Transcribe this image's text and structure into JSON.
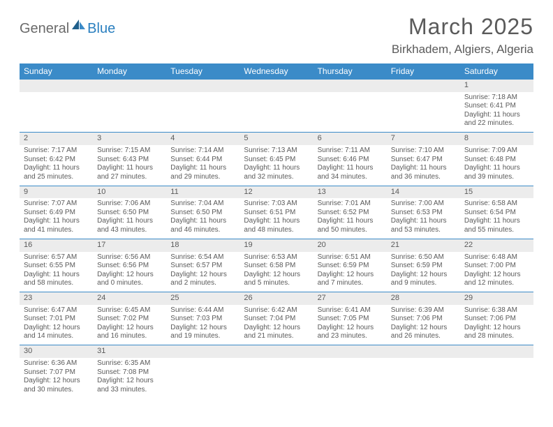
{
  "logo": {
    "part1": "General",
    "part2": "Blue"
  },
  "title": "March 2025",
  "location": "Birkhadem, Algiers, Algeria",
  "colors": {
    "header_bg": "#3b8bc8",
    "header_text": "#ffffff",
    "daynum_bg": "#ececec",
    "border": "#3b8bc8",
    "text": "#5a5a5a",
    "logo_accent": "#2a7fbf"
  },
  "weekdays": [
    "Sunday",
    "Monday",
    "Tuesday",
    "Wednesday",
    "Thursday",
    "Friday",
    "Saturday"
  ],
  "weeks": [
    [
      null,
      null,
      null,
      null,
      null,
      null,
      {
        "n": "1",
        "sr": "Sunrise: 7:18 AM",
        "ss": "Sunset: 6:41 PM",
        "d1": "Daylight: 11 hours",
        "d2": "and 22 minutes."
      }
    ],
    [
      {
        "n": "2",
        "sr": "Sunrise: 7:17 AM",
        "ss": "Sunset: 6:42 PM",
        "d1": "Daylight: 11 hours",
        "d2": "and 25 minutes."
      },
      {
        "n": "3",
        "sr": "Sunrise: 7:15 AM",
        "ss": "Sunset: 6:43 PM",
        "d1": "Daylight: 11 hours",
        "d2": "and 27 minutes."
      },
      {
        "n": "4",
        "sr": "Sunrise: 7:14 AM",
        "ss": "Sunset: 6:44 PM",
        "d1": "Daylight: 11 hours",
        "d2": "and 29 minutes."
      },
      {
        "n": "5",
        "sr": "Sunrise: 7:13 AM",
        "ss": "Sunset: 6:45 PM",
        "d1": "Daylight: 11 hours",
        "d2": "and 32 minutes."
      },
      {
        "n": "6",
        "sr": "Sunrise: 7:11 AM",
        "ss": "Sunset: 6:46 PM",
        "d1": "Daylight: 11 hours",
        "d2": "and 34 minutes."
      },
      {
        "n": "7",
        "sr": "Sunrise: 7:10 AM",
        "ss": "Sunset: 6:47 PM",
        "d1": "Daylight: 11 hours",
        "d2": "and 36 minutes."
      },
      {
        "n": "8",
        "sr": "Sunrise: 7:09 AM",
        "ss": "Sunset: 6:48 PM",
        "d1": "Daylight: 11 hours",
        "d2": "and 39 minutes."
      }
    ],
    [
      {
        "n": "9",
        "sr": "Sunrise: 7:07 AM",
        "ss": "Sunset: 6:49 PM",
        "d1": "Daylight: 11 hours",
        "d2": "and 41 minutes."
      },
      {
        "n": "10",
        "sr": "Sunrise: 7:06 AM",
        "ss": "Sunset: 6:50 PM",
        "d1": "Daylight: 11 hours",
        "d2": "and 43 minutes."
      },
      {
        "n": "11",
        "sr": "Sunrise: 7:04 AM",
        "ss": "Sunset: 6:50 PM",
        "d1": "Daylight: 11 hours",
        "d2": "and 46 minutes."
      },
      {
        "n": "12",
        "sr": "Sunrise: 7:03 AM",
        "ss": "Sunset: 6:51 PM",
        "d1": "Daylight: 11 hours",
        "d2": "and 48 minutes."
      },
      {
        "n": "13",
        "sr": "Sunrise: 7:01 AM",
        "ss": "Sunset: 6:52 PM",
        "d1": "Daylight: 11 hours",
        "d2": "and 50 minutes."
      },
      {
        "n": "14",
        "sr": "Sunrise: 7:00 AM",
        "ss": "Sunset: 6:53 PM",
        "d1": "Daylight: 11 hours",
        "d2": "and 53 minutes."
      },
      {
        "n": "15",
        "sr": "Sunrise: 6:58 AM",
        "ss": "Sunset: 6:54 PM",
        "d1": "Daylight: 11 hours",
        "d2": "and 55 minutes."
      }
    ],
    [
      {
        "n": "16",
        "sr": "Sunrise: 6:57 AM",
        "ss": "Sunset: 6:55 PM",
        "d1": "Daylight: 11 hours",
        "d2": "and 58 minutes."
      },
      {
        "n": "17",
        "sr": "Sunrise: 6:56 AM",
        "ss": "Sunset: 6:56 PM",
        "d1": "Daylight: 12 hours",
        "d2": "and 0 minutes."
      },
      {
        "n": "18",
        "sr": "Sunrise: 6:54 AM",
        "ss": "Sunset: 6:57 PM",
        "d1": "Daylight: 12 hours",
        "d2": "and 2 minutes."
      },
      {
        "n": "19",
        "sr": "Sunrise: 6:53 AM",
        "ss": "Sunset: 6:58 PM",
        "d1": "Daylight: 12 hours",
        "d2": "and 5 minutes."
      },
      {
        "n": "20",
        "sr": "Sunrise: 6:51 AM",
        "ss": "Sunset: 6:59 PM",
        "d1": "Daylight: 12 hours",
        "d2": "and 7 minutes."
      },
      {
        "n": "21",
        "sr": "Sunrise: 6:50 AM",
        "ss": "Sunset: 6:59 PM",
        "d1": "Daylight: 12 hours",
        "d2": "and 9 minutes."
      },
      {
        "n": "22",
        "sr": "Sunrise: 6:48 AM",
        "ss": "Sunset: 7:00 PM",
        "d1": "Daylight: 12 hours",
        "d2": "and 12 minutes."
      }
    ],
    [
      {
        "n": "23",
        "sr": "Sunrise: 6:47 AM",
        "ss": "Sunset: 7:01 PM",
        "d1": "Daylight: 12 hours",
        "d2": "and 14 minutes."
      },
      {
        "n": "24",
        "sr": "Sunrise: 6:45 AM",
        "ss": "Sunset: 7:02 PM",
        "d1": "Daylight: 12 hours",
        "d2": "and 16 minutes."
      },
      {
        "n": "25",
        "sr": "Sunrise: 6:44 AM",
        "ss": "Sunset: 7:03 PM",
        "d1": "Daylight: 12 hours",
        "d2": "and 19 minutes."
      },
      {
        "n": "26",
        "sr": "Sunrise: 6:42 AM",
        "ss": "Sunset: 7:04 PM",
        "d1": "Daylight: 12 hours",
        "d2": "and 21 minutes."
      },
      {
        "n": "27",
        "sr": "Sunrise: 6:41 AM",
        "ss": "Sunset: 7:05 PM",
        "d1": "Daylight: 12 hours",
        "d2": "and 23 minutes."
      },
      {
        "n": "28",
        "sr": "Sunrise: 6:39 AM",
        "ss": "Sunset: 7:06 PM",
        "d1": "Daylight: 12 hours",
        "d2": "and 26 minutes."
      },
      {
        "n": "29",
        "sr": "Sunrise: 6:38 AM",
        "ss": "Sunset: 7:06 PM",
        "d1": "Daylight: 12 hours",
        "d2": "and 28 minutes."
      }
    ],
    [
      {
        "n": "30",
        "sr": "Sunrise: 6:36 AM",
        "ss": "Sunset: 7:07 PM",
        "d1": "Daylight: 12 hours",
        "d2": "and 30 minutes."
      },
      {
        "n": "31",
        "sr": "Sunrise: 6:35 AM",
        "ss": "Sunset: 7:08 PM",
        "d1": "Daylight: 12 hours",
        "d2": "and 33 minutes."
      },
      null,
      null,
      null,
      null,
      null
    ]
  ]
}
